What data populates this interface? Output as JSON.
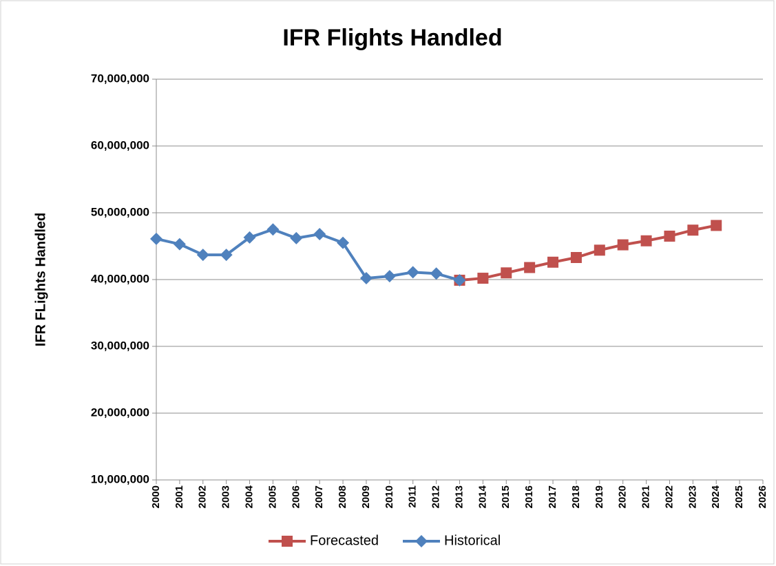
{
  "chart_data": {
    "type": "line",
    "title": "IFR Flights Handled",
    "y_label": "IFR FLights Handled",
    "categories": [
      "2000",
      "2001",
      "2002",
      "2003",
      "2004",
      "2005",
      "2006",
      "2007",
      "2008",
      "2009",
      "2010",
      "2011",
      "2012",
      "2013",
      "2014",
      "2015",
      "2016",
      "2017",
      "2018",
      "2019",
      "2020",
      "2021",
      "2022",
      "2023",
      "2024",
      "2025",
      "2026"
    ],
    "series": [
      {
        "name": "Forecasted",
        "color": "#c0504d",
        "marker": "square",
        "values": [
          null,
          null,
          null,
          null,
          null,
          null,
          null,
          null,
          null,
          null,
          null,
          null,
          null,
          39900000,
          40200000,
          41000000,
          41800000,
          42600000,
          43300000,
          44400000,
          45200000,
          45800000,
          46500000,
          47400000,
          48100000,
          null,
          null
        ]
      },
      {
        "name": "Historical",
        "color": "#4f81bd",
        "marker": "diamond",
        "values": [
          46100000,
          45300000,
          43700000,
          43700000,
          46300000,
          47500000,
          46200000,
          46800000,
          45500000,
          40200000,
          40500000,
          41100000,
          40900000,
          39900000,
          null,
          null,
          null,
          null,
          null,
          null,
          null,
          null,
          null,
          null,
          null,
          null,
          null
        ]
      }
    ],
    "ylim": [
      10000000,
      70000000
    ],
    "yticks": [
      {
        "value": 10000000,
        "label": "10,000,000"
      },
      {
        "value": 20000000,
        "label": "20,000,000"
      },
      {
        "value": 30000000,
        "label": "30,000,000"
      },
      {
        "value": 40000000,
        "label": "40,000,000"
      },
      {
        "value": 50000000,
        "label": "50,000,000"
      },
      {
        "value": 60000000,
        "label": "60,000,000"
      },
      {
        "value": 70000000,
        "label": "70,000,000"
      }
    ],
    "grid": true,
    "legend": "bottom"
  }
}
